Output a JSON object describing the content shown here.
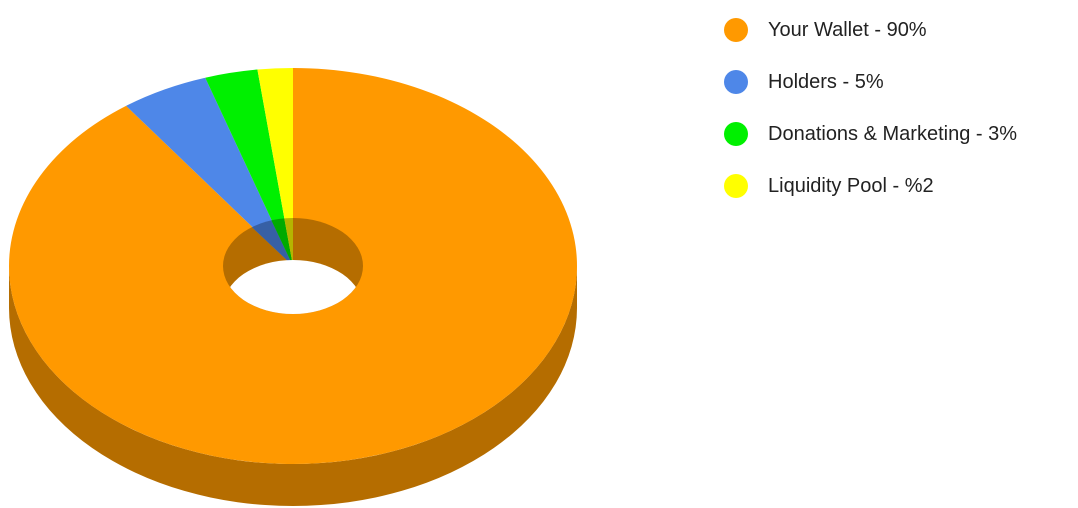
{
  "chart_data": {
    "type": "pie",
    "style": "3d-donut",
    "slices": [
      {
        "label": "Your Wallet - 90%",
        "value": 90,
        "color": "#ff9900"
      },
      {
        "label": "Holders - 5%",
        "value": 5,
        "color": "#4e87e8"
      },
      {
        "label": "Donations & Marketing - 3%",
        "value": 3,
        "color": "#00f000"
      },
      {
        "label": "Liquidity Pool - %2",
        "value": 2,
        "color": "#ffff00"
      }
    ],
    "legend_position": "right",
    "start_angle": "top",
    "direction": "clockwise"
  }
}
